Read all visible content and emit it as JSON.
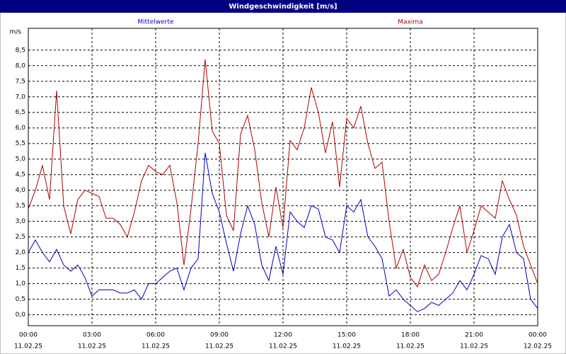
{
  "chart_data": {
    "type": "line",
    "title": "Windgeschwindigkeit [m/s]",
    "ylabel": "m/s",
    "x": [
      0,
      20,
      40,
      60,
      80,
      100,
      120,
      140,
      160,
      180,
      200,
      220,
      240,
      260,
      280,
      300,
      320,
      340,
      360,
      380,
      400,
      420,
      440,
      460,
      480,
      500,
      520,
      540,
      560,
      580,
      600,
      620,
      640,
      660,
      680,
      700,
      720,
      740,
      760,
      780,
      800,
      820,
      840,
      860,
      880,
      900,
      920,
      940,
      960,
      980,
      1000,
      1020,
      1040,
      1060,
      1080,
      1100,
      1120,
      1140,
      1160,
      1180,
      1200,
      1220,
      1240,
      1260,
      1280,
      1300,
      1320,
      1340,
      1360,
      1380,
      1400,
      1420,
      1440
    ],
    "series": [
      {
        "name": "Mittelwerte",
        "color": "#0000c0",
        "values": [
          2.0,
          2.4,
          2.0,
          1.7,
          2.1,
          1.6,
          1.4,
          1.6,
          1.2,
          0.6,
          0.8,
          0.8,
          0.8,
          0.7,
          0.7,
          0.8,
          0.5,
          1.0,
          1.0,
          1.2,
          1.4,
          1.5,
          0.8,
          1.5,
          1.8,
          5.2,
          3.9,
          3.3,
          2.3,
          1.4,
          2.6,
          3.5,
          2.9,
          1.6,
          1.1,
          2.2,
          1.3,
          3.3,
          3.0,
          2.8,
          3.5,
          3.4,
          2.5,
          2.4,
          2.0,
          3.5,
          3.3,
          3.7,
          2.5,
          2.2,
          1.8,
          0.6,
          0.8,
          0.5,
          0.3,
          0.1,
          0.2,
          0.4,
          0.3,
          0.5,
          0.7,
          1.1,
          0.8,
          1.3,
          1.9,
          1.8,
          1.3,
          2.5,
          2.9,
          2.0,
          1.8,
          0.5,
          0.2
        ]
      },
      {
        "name": "Maxima",
        "color": "#b00000",
        "values": [
          3.4,
          4.0,
          4.8,
          3.7,
          7.2,
          3.5,
          2.6,
          3.7,
          4.0,
          3.9,
          3.8,
          3.1,
          3.1,
          2.9,
          2.5,
          3.3,
          4.3,
          4.8,
          4.6,
          4.5,
          4.8,
          3.6,
          1.6,
          3.4,
          5.5,
          8.2,
          5.9,
          5.5,
          3.2,
          2.7,
          5.8,
          6.4,
          5.3,
          3.6,
          2.5,
          4.1,
          2.8,
          5.6,
          5.3,
          6.0,
          7.3,
          6.5,
          5.2,
          6.2,
          4.1,
          6.3,
          6.0,
          6.7,
          5.5,
          4.7,
          4.9,
          3.0,
          1.5,
          2.1,
          1.2,
          0.9,
          1.6,
          1.1,
          1.3,
          2.0,
          2.8,
          3.5,
          2.0,
          2.7,
          3.5,
          3.3,
          3.1,
          4.3,
          3.7,
          3.2,
          2.2,
          1.6,
          1.0
        ]
      }
    ],
    "xlim": [
      0,
      1440
    ],
    "xticks": [
      {
        "value": 0,
        "label": "00:00"
      },
      {
        "value": 180,
        "label": "03:00"
      },
      {
        "value": 360,
        "label": "06:00"
      },
      {
        "value": 540,
        "label": "09:00"
      },
      {
        "value": 720,
        "label": "12:00"
      },
      {
        "value": 900,
        "label": "15:00"
      },
      {
        "value": 1080,
        "label": "18:00"
      },
      {
        "value": 1260,
        "label": "21:00"
      },
      {
        "value": 1440,
        "label": "00:00"
      }
    ],
    "xtick_dates": [
      "11.02.25",
      "11.02.25",
      "11.02.25",
      "11.02.25",
      "11.02.25",
      "11.02.25",
      "11.02.25",
      "11.02.25",
      "12.02.25"
    ],
    "ylim": [
      -0.35,
      9.2
    ],
    "yticks": [
      {
        "value": 0,
        "label": "0,0"
      },
      {
        "value": 0.5,
        "label": "0,5"
      },
      {
        "value": 1,
        "label": "1,0"
      },
      {
        "value": 1.5,
        "label": "1,5"
      },
      {
        "value": 2,
        "label": "2,0"
      },
      {
        "value": 2.5,
        "label": "2,5"
      },
      {
        "value": 3,
        "label": "3,0"
      },
      {
        "value": 3.5,
        "label": "3,5"
      },
      {
        "value": 4,
        "label": "4,0"
      },
      {
        "value": 4.5,
        "label": "4,5"
      },
      {
        "value": 5,
        "label": "5,0"
      },
      {
        "value": 5.5,
        "label": "5,5"
      },
      {
        "value": 6,
        "label": "6,0"
      },
      {
        "value": 6.5,
        "label": "6,5"
      },
      {
        "value": 7,
        "label": "7,0"
      },
      {
        "value": 7.5,
        "label": "7,5"
      },
      {
        "value": 8,
        "label": "8,0"
      },
      {
        "value": 8.5,
        "label": "8,5"
      }
    ],
    "grid": true
  }
}
